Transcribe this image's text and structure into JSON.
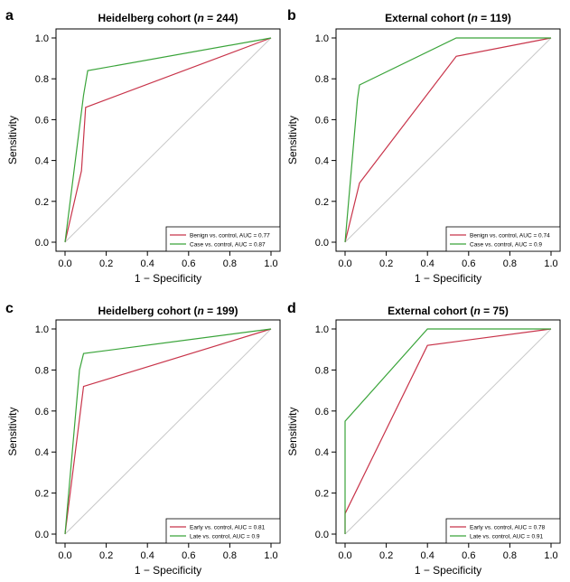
{
  "colors": {
    "series_red": "#c8344a",
    "series_green": "#3aa43a",
    "diagonal": "#c8c8c8",
    "axis": "#000000"
  },
  "chart_data": [
    {
      "panel": "a",
      "type": "line",
      "title_prefix": "Heidelberg cohort (",
      "title_n": "n",
      "title_suffix": " = 244)",
      "xlabel": "1 − Specificity",
      "ylabel": "Sensitivity",
      "xlim": [
        0,
        1
      ],
      "ylim": [
        0,
        1
      ],
      "xticks": [
        "0.0",
        "0.2",
        "0.4",
        "0.6",
        "0.8",
        "1.0"
      ],
      "yticks": [
        "0.0",
        "0.2",
        "0.4",
        "0.6",
        "0.8",
        "1.0"
      ],
      "diagonal": true,
      "legend_position": "bottom-right",
      "series": [
        {
          "name": "Benign vs. control, AUC = 0.77",
          "color_key": "series_red",
          "x": [
            0,
            0.08,
            0.1,
            1.0
          ],
          "y": [
            0,
            0.35,
            0.66,
            1.0
          ]
        },
        {
          "name": "Case vs. control, AUC = 0.87",
          "color_key": "series_green",
          "x": [
            0,
            0.09,
            0.11,
            1.0
          ],
          "y": [
            0,
            0.72,
            0.84,
            1.0
          ]
        }
      ]
    },
    {
      "panel": "b",
      "type": "line",
      "title_prefix": "External cohort (",
      "title_n": "n",
      "title_suffix": " = 119)",
      "xlabel": "1 − Specificity",
      "ylabel": "Sensitivity",
      "xlim": [
        0,
        1
      ],
      "ylim": [
        0,
        1
      ],
      "xticks": [
        "0.0",
        "0.2",
        "0.4",
        "0.6",
        "0.8",
        "1.0"
      ],
      "yticks": [
        "0.0",
        "0.2",
        "0.4",
        "0.6",
        "0.8",
        "1.0"
      ],
      "diagonal": true,
      "legend_position": "bottom-right",
      "series": [
        {
          "name": "Benign vs. control, AUC = 0.74",
          "color_key": "series_red",
          "x": [
            0,
            0.07,
            0.54,
            1.0
          ],
          "y": [
            0,
            0.29,
            0.91,
            1.0
          ]
        },
        {
          "name": "Case vs. control, AUC = 0.9",
          "color_key": "series_green",
          "x": [
            0,
            0.06,
            0.07,
            0.54,
            1.0
          ],
          "y": [
            0,
            0.7,
            0.77,
            1.0,
            1.0
          ]
        }
      ]
    },
    {
      "panel": "c",
      "type": "line",
      "title_prefix": "Heidelberg cohort (",
      "title_n": "n",
      "title_suffix": " = 199)",
      "xlabel": "1 − Specificity",
      "ylabel": "Sensitivity",
      "xlim": [
        0,
        1
      ],
      "ylim": [
        0,
        1
      ],
      "xticks": [
        "0.0",
        "0.2",
        "0.4",
        "0.6",
        "0.8",
        "1.0"
      ],
      "yticks": [
        "0.0",
        "0.2",
        "0.4",
        "0.6",
        "0.8",
        "1.0"
      ],
      "diagonal": true,
      "legend_position": "bottom-right",
      "series": [
        {
          "name": "Early vs. control, AUC = 0.81",
          "color_key": "series_red",
          "x": [
            0,
            0.09,
            1.0
          ],
          "y": [
            0,
            0.72,
            1.0
          ]
        },
        {
          "name": "Late vs. control, AUC = 0.9",
          "color_key": "series_green",
          "x": [
            0,
            0.07,
            0.09,
            1.0
          ],
          "y": [
            0,
            0.8,
            0.88,
            1.0
          ]
        }
      ]
    },
    {
      "panel": "d",
      "type": "line",
      "title_prefix": "External cohort (",
      "title_n": "n",
      "title_suffix": " = 75)",
      "xlabel": "1 − Specificity",
      "ylabel": "Sensitivity",
      "xlim": [
        0,
        1
      ],
      "ylim": [
        0,
        1
      ],
      "xticks": [
        "0.0",
        "0.2",
        "0.4",
        "0.6",
        "0.8",
        "1.0"
      ],
      "yticks": [
        "0.0",
        "0.2",
        "0.4",
        "0.6",
        "0.8",
        "1.0"
      ],
      "diagonal": true,
      "legend_position": "bottom-right",
      "series": [
        {
          "name": "Early vs. control, AUC = 0.78",
          "color_key": "series_red",
          "x": [
            0,
            0,
            0.4,
            1.0
          ],
          "y": [
            0,
            0.1,
            0.92,
            1.0
          ]
        },
        {
          "name": "Late vs. control, AUC = 0.91",
          "color_key": "series_green",
          "x": [
            0,
            0,
            0.4,
            1.0
          ],
          "y": [
            0,
            0.55,
            1.0,
            1.0
          ]
        }
      ]
    }
  ]
}
